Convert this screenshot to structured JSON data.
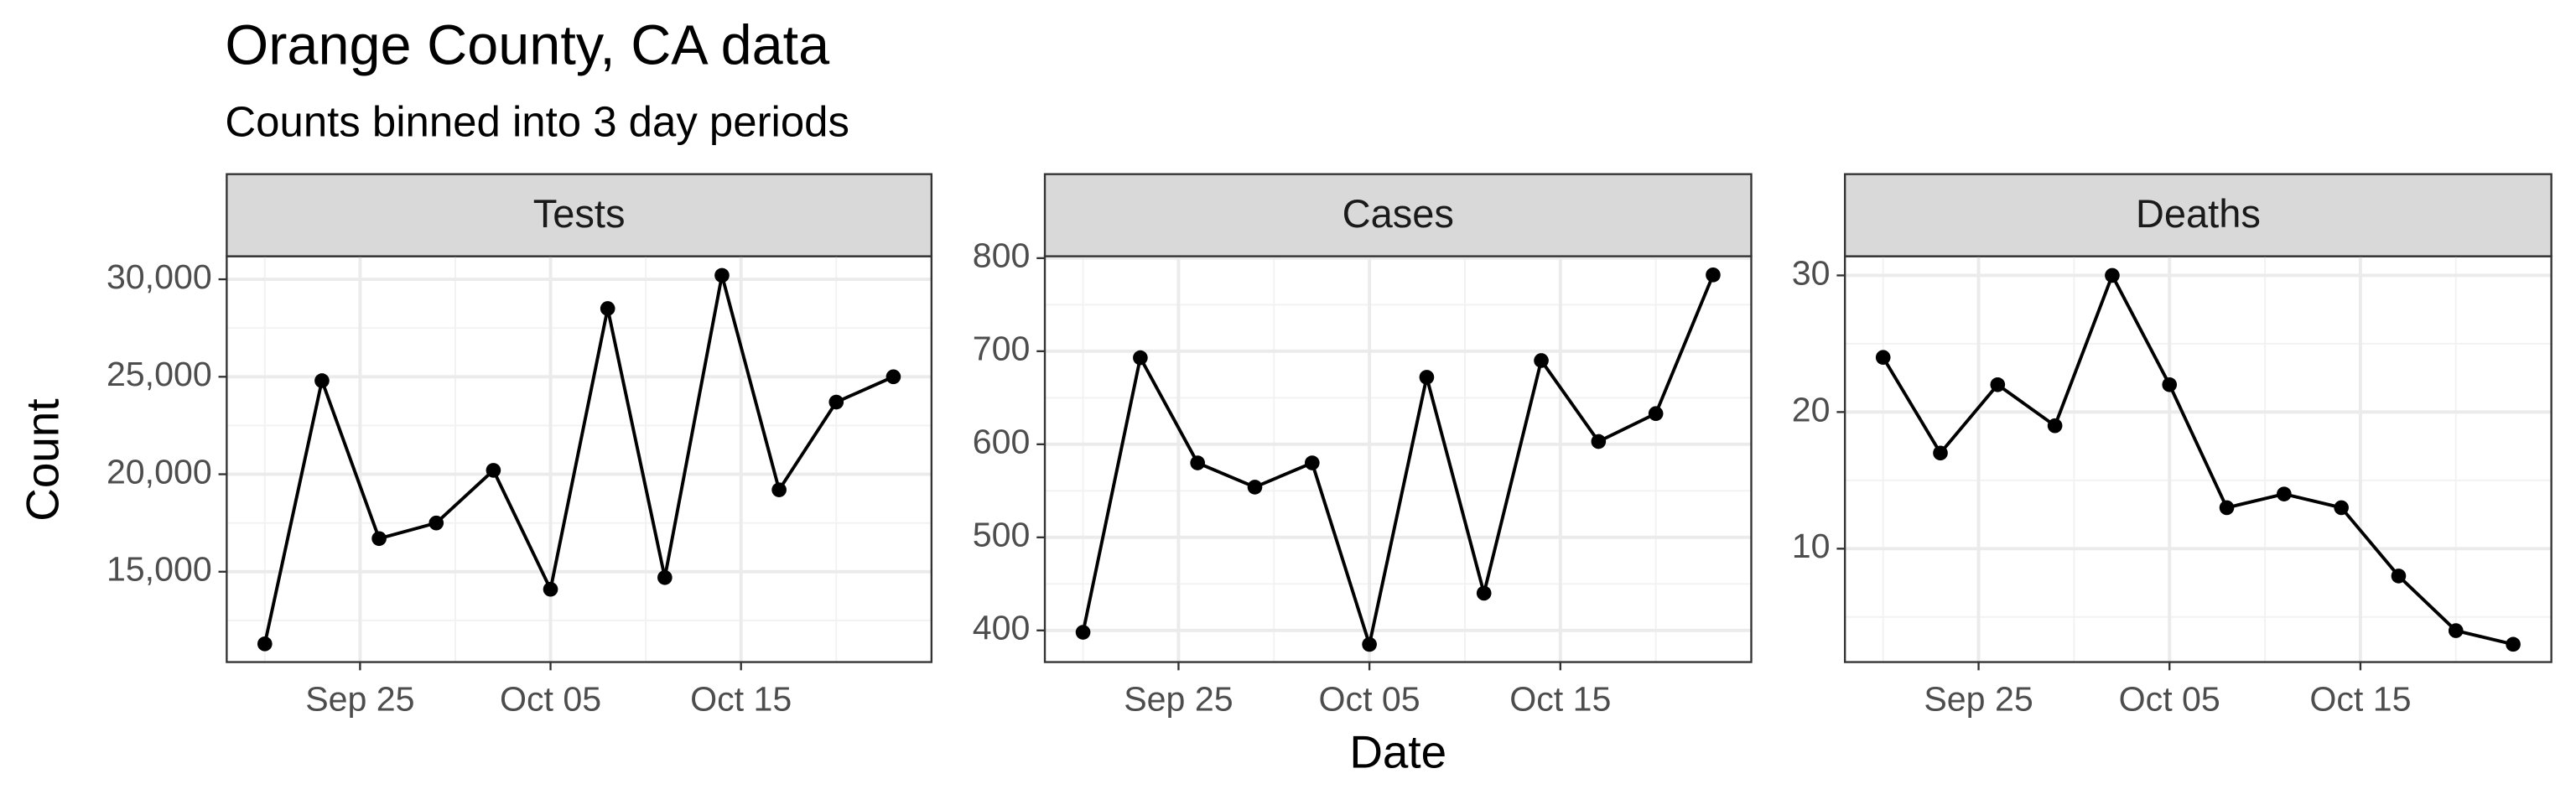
{
  "title": "Orange County, CA data",
  "subtitle": "Counts binned into 3 day periods",
  "x_label": "Date",
  "y_label": "Count",
  "chart_data": [
    {
      "type": "line",
      "title": "Tests",
      "color": "#000000",
      "grid": true,
      "x": [
        "Sep 20",
        "Sep 23",
        "Sep 26",
        "Sep 29",
        "Oct 02",
        "Oct 05",
        "Oct 08",
        "Oct 11",
        "Oct 14",
        "Oct 17",
        "Oct 20",
        "Oct 23"
      ],
      "values": [
        11300,
        24800,
        16700,
        17500,
        20200,
        14100,
        28500,
        14700,
        30200,
        19200,
        23700,
        25000
      ],
      "xlim": [
        "Sep 18",
        "Oct 25"
      ],
      "xticks": [
        "Sep 25",
        "Oct 05",
        "Oct 15"
      ],
      "ylim": [
        10365,
        31180
      ],
      "yticks": [
        {
          "value": 15000,
          "label": "15,000"
        },
        {
          "value": 20000,
          "label": "20,000"
        },
        {
          "value": 25000,
          "label": "25,000"
        },
        {
          "value": 30000,
          "label": "30,000"
        }
      ]
    },
    {
      "type": "line",
      "title": "Cases",
      "color": "#000000",
      "grid": true,
      "x": [
        "Sep 20",
        "Sep 23",
        "Sep 26",
        "Sep 29",
        "Oct 02",
        "Oct 05",
        "Oct 08",
        "Oct 11",
        "Oct 14",
        "Oct 17",
        "Oct 20",
        "Oct 23"
      ],
      "values": [
        398,
        693,
        580,
        554,
        580,
        385,
        672,
        440,
        690,
        603,
        633,
        782
      ],
      "xlim": [
        "Sep 18",
        "Oct 25"
      ],
      "xticks": [
        "Sep 25",
        "Oct 05",
        "Oct 15"
      ],
      "ylim": [
        366,
        802
      ],
      "yticks": [
        400,
        500,
        600,
        700,
        800
      ]
    },
    {
      "type": "line",
      "title": "Deaths",
      "color": "#000000",
      "grid": true,
      "x": [
        "Sep 20",
        "Sep 23",
        "Sep 26",
        "Sep 29",
        "Oct 02",
        "Oct 05",
        "Oct 08",
        "Oct 11",
        "Oct 14",
        "Oct 17",
        "Oct 20",
        "Oct 23"
      ],
      "values": [
        24,
        17,
        22,
        19,
        30,
        22,
        13,
        14,
        13,
        8,
        4,
        3
      ],
      "xlim": [
        "Sep 18",
        "Oct 25"
      ],
      "xticks": [
        "Sep 25",
        "Oct 05",
        "Oct 15"
      ],
      "ylim": [
        1.7,
        31.4
      ],
      "yticks": [
        10,
        20,
        30
      ]
    }
  ]
}
